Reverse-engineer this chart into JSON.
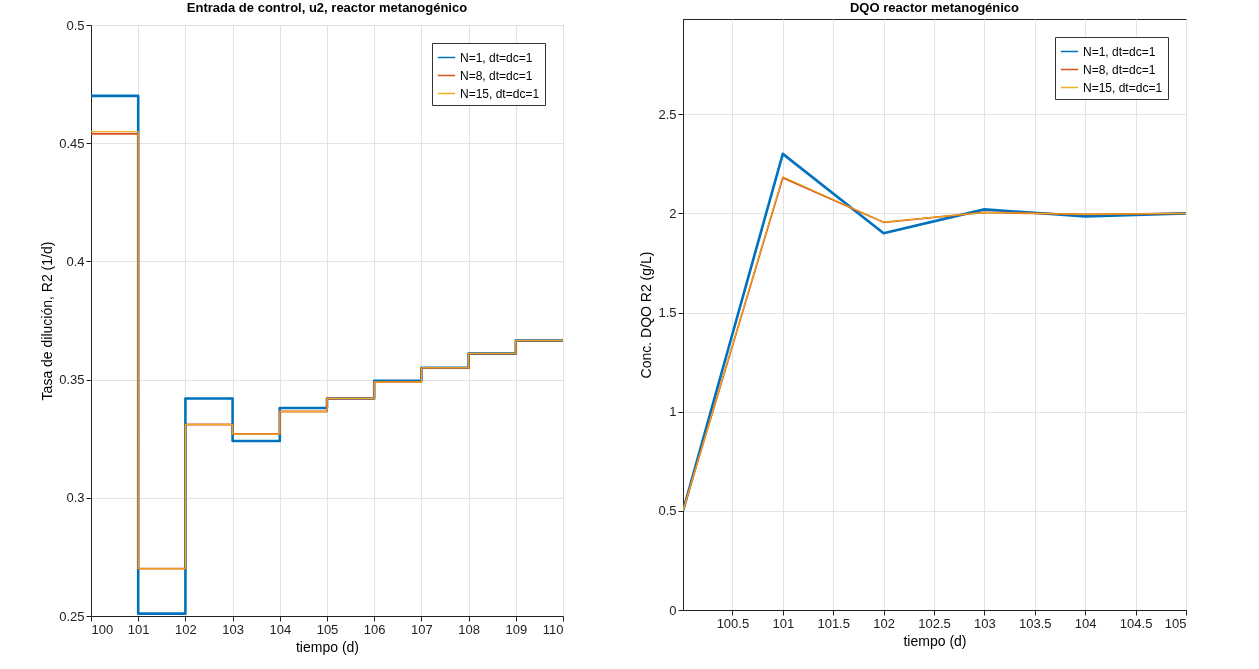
{
  "chart_data": [
    {
      "type": "step",
      "title": "Entrada de control, u2, reactor metanogénico",
      "xlabel": "tiempo (d)",
      "ylabel": "Tasa de dilución, R2 (1/d)",
      "x": [
        100,
        101,
        102,
        103,
        104,
        105,
        106,
        107,
        108,
        109,
        110
      ],
      "series": [
        {
          "name": "N=1, dt=dc=1",
          "color": "#0072bd",
          "values": [
            0.47,
            0.251,
            0.342,
            0.324,
            0.338,
            0.342,
            0.3495,
            0.355,
            0.361,
            0.3665,
            0.3665
          ]
        },
        {
          "name": "N=8, dt=dc=1",
          "color": "#d95319",
          "values": [
            0.454,
            0.27,
            0.331,
            0.327,
            0.3365,
            0.342,
            0.349,
            0.355,
            0.361,
            0.3665,
            0.3665
          ]
        },
        {
          "name": "N=15, dt=dc=1",
          "color": "#edb120",
          "values": [
            0.455,
            0.27,
            0.331,
            0.327,
            0.3365,
            0.342,
            0.349,
            0.355,
            0.361,
            0.3665,
            0.3665
          ]
        }
      ],
      "xlim": [
        100,
        110
      ],
      "xticks": [
        100,
        101,
        102,
        103,
        104,
        105,
        106,
        107,
        108,
        109,
        110
      ],
      "ylim": [
        0.25,
        0.5
      ],
      "yticks": [
        0.25,
        0.3,
        0.35,
        0.4,
        0.45,
        0.5
      ],
      "grid": true,
      "legend": "top right"
    },
    {
      "type": "line",
      "title": "DQO reactor metanogénico",
      "xlabel": "tiempo (d)",
      "ylabel": "Conc. DQO R2 (g/L)",
      "x": [
        100.01,
        101,
        102,
        103,
        104,
        105
      ],
      "series": [
        {
          "name": "N=1, dt=dc=1",
          "color": "#0072bd",
          "values": [
            0.5,
            2.3,
            1.9,
            2.02,
            1.985,
            2.0
          ]
        },
        {
          "name": "N=8, dt=dc=1",
          "color": "#d95319",
          "values": [
            0.5,
            2.18,
            1.955,
            2.005,
            1.995,
            2.0
          ]
        },
        {
          "name": "N=15, dt=dc=1",
          "color": "#edb120",
          "values": [
            0.5,
            2.185,
            1.955,
            2.005,
            1.995,
            2.0
          ]
        }
      ],
      "xlim": [
        100.01,
        105
      ],
      "xticks": [
        100.5,
        101,
        101.5,
        102,
        102.5,
        103,
        103.5,
        104,
        104.5,
        105
      ],
      "ylim": [
        0,
        2.98
      ],
      "yticks": [
        0,
        0.5,
        1,
        1.5,
        2,
        2.5
      ],
      "grid": true,
      "legend": "top right"
    }
  ]
}
